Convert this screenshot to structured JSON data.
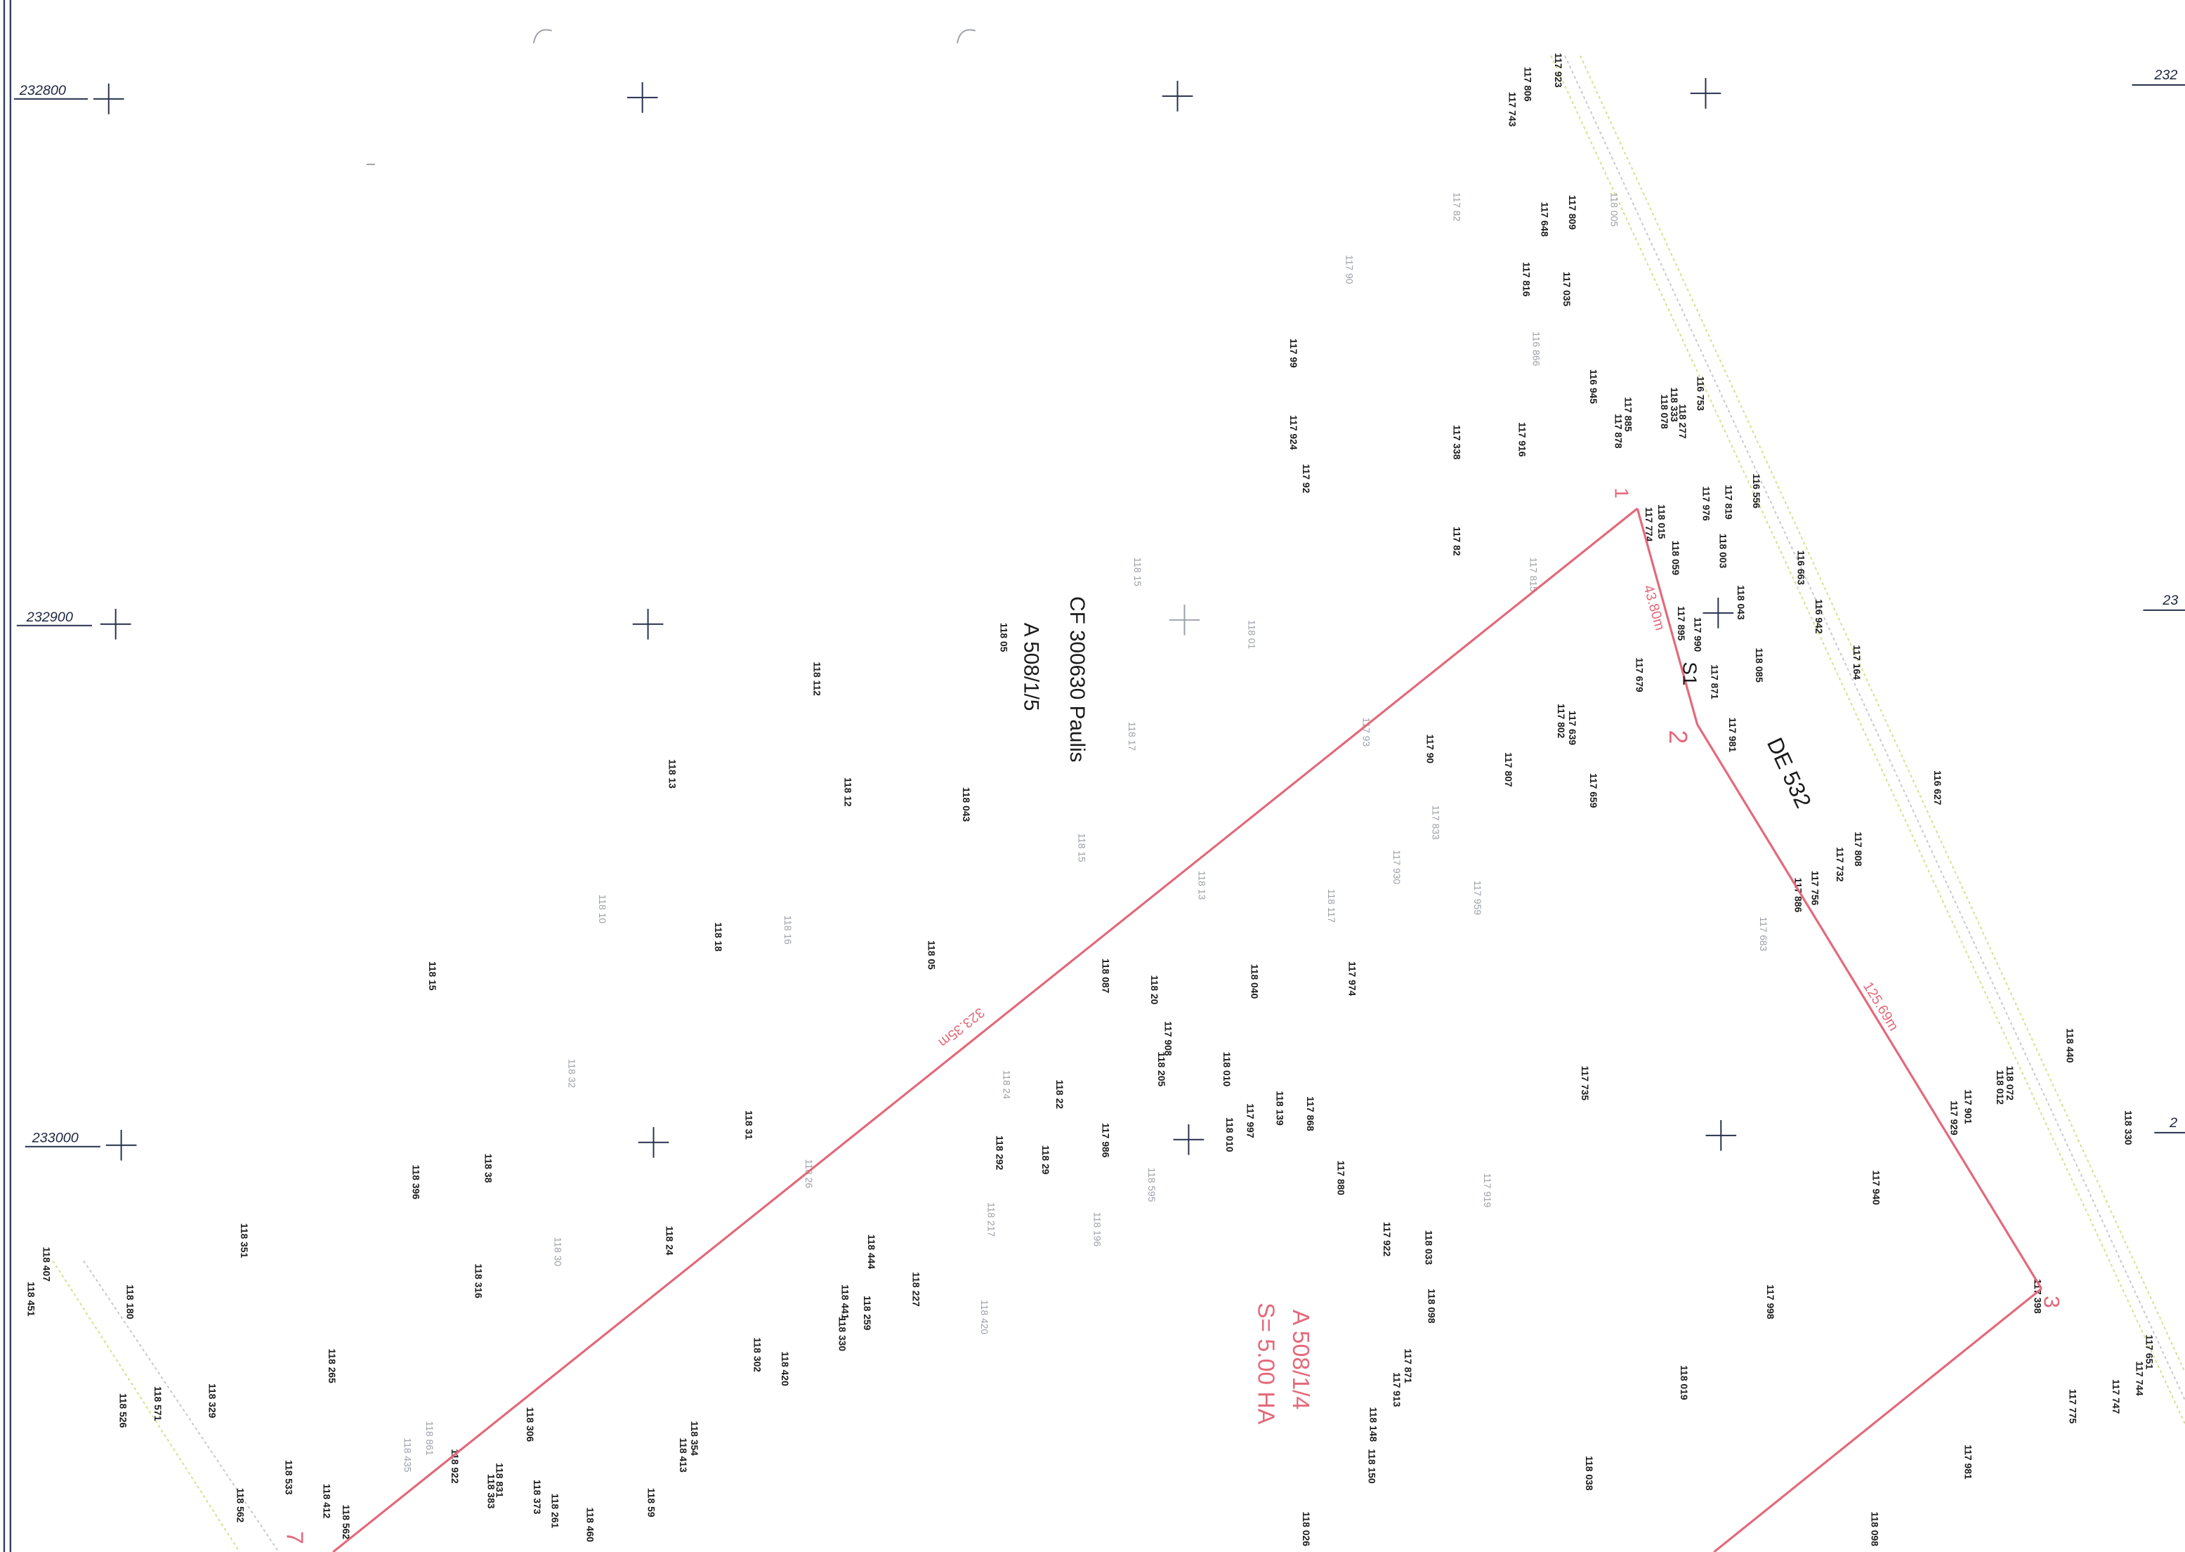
{
  "map": {
    "grid_labels_left": [
      "232800",
      "232900",
      "233000"
    ],
    "grid_labels_right": [
      "232",
      "23",
      "2"
    ],
    "parcel_labels": {
      "owner": "CF 300630 Paulis",
      "neighbour_parcel": "A 508/1/5",
      "road": "DE 532",
      "station": "S1"
    },
    "plot": {
      "id": "A 508/1/4",
      "area": "S= 5.00 HA",
      "vertices": [
        "1",
        "2",
        "3",
        "7"
      ],
      "distances": [
        "323.35m",
        "43.80m",
        "125.69m"
      ]
    },
    "elevations": [
      "117 923",
      "117 806",
      "117 743",
      "117 82",
      "117 809",
      "118 005",
      "117 648",
      "117 90",
      "117 816",
      "117 035",
      "117 99",
      "116 866",
      "116 945",
      "116 753",
      "118 333",
      "118 078",
      "118 277",
      "117 885",
      "117 878",
      "117 338",
      "117 916",
      "117 924",
      "117 92",
      "116 556",
      "117 819",
      "117 976",
      "118 015",
      "117 774",
      "117 82",
      "118 003",
      "116 663",
      "118 059",
      "118 15",
      "117 815",
      "116 942",
      "118 043",
      "118 01",
      "117 895",
      "117 990",
      "118 085",
      "117 164",
      "118 112",
      "117 679",
      "117 871",
      "118 17",
      "117 93",
      "117 639",
      "117 802",
      "117 981",
      "117 90",
      "118 13",
      "117 807",
      "117 659",
      "116 627",
      "118 12",
      "118 043",
      "117 833",
      "118 15",
      "117 808",
      "117 732",
      "117 930",
      "118 13",
      "117 756",
      "117 886",
      "118 10",
      "118 117",
      "117 959",
      "118 16",
      "118 18",
      "117 683",
      "118 05",
      "118 15",
      "118 087",
      "117 974",
      "118 20",
      "118 040",
      "118 440",
      "117 908",
      "118 205",
      "118 010",
      "118 32",
      "117 735",
      "118 072",
      "118 012",
      "118 24",
      "118 22",
      "118 139",
      "117 868",
      "117 901",
      "117 929",
      "117 997",
      "118 010",
      "118 330",
      "118 31",
      "117 986",
      "118 292",
      "118 29",
      "118 38",
      "118 396",
      "118 26",
      "117 880",
      "118 595",
      "117 940",
      "117 919",
      "118 217",
      "118 196",
      "118 351",
      "117 922",
      "118 033",
      "118 24",
      "118 444",
      "118 30",
      "118 407",
      "118 451",
      "118 316",
      "118 227",
      "117 998",
      "118 441",
      "118 330",
      "118 259",
      "118 420",
      "118 180",
      "118 098",
      "117 398",
      "118 302",
      "118 420",
      "117 871",
      "117 913",
      "118 265",
      "117 651",
      "117 744",
      "118 019",
      "117 747",
      "118 571",
      "118 329",
      "117 775",
      "118 526",
      "118 148",
      "118 150",
      "118 306",
      "118 354",
      "118 413",
      "118 861",
      "118 435",
      "118 922",
      "118 038",
      "117 981",
      "118 533",
      "118 562",
      "118 412",
      "118 831",
      "118 383",
      "118 373",
      "118 261",
      "118 59",
      "118 562",
      "118 460",
      "118 026",
      "118 098",
      "118 05"
    ]
  },
  "colors": {
    "boundary": "#e3697a",
    "grid": "#27304d",
    "elevation_text": "#1c1c1c",
    "faint_text": "#9a9fa8",
    "road_edge": "#d8df8e"
  }
}
